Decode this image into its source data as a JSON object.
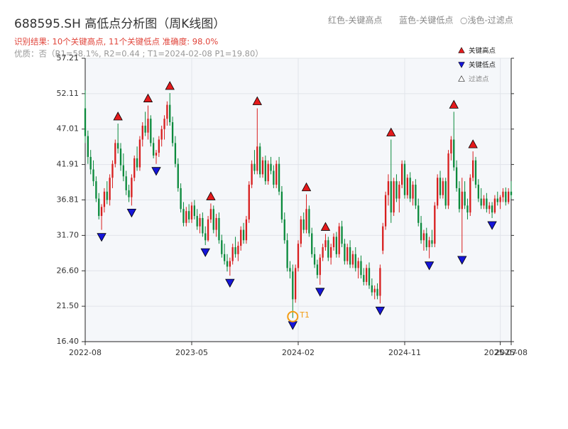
{
  "chart_data": {
    "type": "candlestick",
    "title": "688595.SH 高低点分析图（周K线图）",
    "subtitle": "识别结果: 10个关键高点, 11个关键低点  准确度: 98.0%",
    "note": "优质：否（R1=58.1%, R2=0.44 ; T1=2024-02-08 P1=19.80）",
    "top_legend": [
      "红色-关键高点",
      "蓝色-关键低点",
      "○浅色-过滤点"
    ],
    "up_color": "#d81e1e",
    "down_color": "#0b8a3c",
    "ylim": [
      16.4,
      57.21
    ],
    "yticks": [
      {
        "value": 16.4,
        "label": "16.40"
      },
      {
        "value": 21.5,
        "label": "21.50"
      },
      {
        "value": 26.6,
        "label": "26.60"
      },
      {
        "value": 31.7,
        "label": "31.70"
      },
      36.81,
      41.91,
      47.01,
      52.11,
      57.21
    ],
    "xticks": [
      {
        "value": 0,
        "label": "2022-08"
      },
      {
        "value": 39,
        "label": "2023-05"
      },
      {
        "value": 78,
        "label": "2024-02"
      },
      {
        "value": 117,
        "label": "2024-11"
      },
      {
        "value": 152,
        "label": "2025-07"
      },
      {
        "value": 156,
        "label": "2025-08"
      }
    ],
    "grid": true,
    "candles": [
      [
        50.0,
        52.6,
        45.0,
        46.0
      ],
      [
        46.0,
        46.8,
        42.0,
        43.0
      ],
      [
        43.0,
        44.0,
        40.5,
        41.2
      ],
      [
        41.2,
        42.5,
        38.8,
        39.5
      ],
      [
        39.5,
        40.2,
        36.5,
        37.0
      ],
      [
        37.0,
        37.8,
        34.0,
        34.5
      ],
      [
        34.5,
        36.2,
        32.5,
        35.8
      ],
      [
        35.8,
        38.5,
        35.0,
        38.0
      ],
      [
        38.0,
        39.5,
        36.2,
        36.8
      ],
      [
        36.8,
        40.5,
        36.0,
        40.0
      ],
      [
        40.0,
        42.5,
        38.5,
        42.0
      ],
      [
        42.0,
        45.5,
        41.5,
        45.0
      ],
      [
        45.0,
        47.8,
        43.5,
        44.2
      ],
      [
        44.2,
        45.0,
        41.0,
        41.8
      ],
      [
        41.8,
        43.5,
        39.5,
        40.2
      ],
      [
        40.2,
        41.0,
        37.5,
        38.2
      ],
      [
        38.2,
        39.0,
        36.5,
        37.2
      ],
      [
        37.2,
        40.5,
        36.0,
        40.0
      ],
      [
        40.0,
        43.2,
        39.5,
        42.8
      ],
      [
        42.8,
        44.5,
        41.0,
        41.5
      ],
      [
        41.5,
        46.0,
        41.0,
        45.5
      ],
      [
        45.5,
        48.0,
        44.5,
        47.5
      ],
      [
        47.5,
        49.5,
        46.0,
        46.5
      ],
      [
        46.5,
        50.4,
        45.5,
        48.5
      ],
      [
        48.5,
        49.0,
        44.5,
        45.0
      ],
      [
        45.0,
        45.8,
        42.8,
        43.2
      ],
      [
        43.2,
        44.0,
        42.0,
        43.6
      ],
      [
        43.6,
        46.0,
        43.0,
        45.5
      ],
      [
        45.5,
        47.5,
        44.5,
        47.0
      ],
      [
        47.0,
        49.0,
        45.5,
        48.5
      ],
      [
        48.5,
        51.0,
        47.5,
        50.5
      ],
      [
        50.5,
        52.2,
        47.5,
        48.0
      ],
      [
        48.0,
        48.8,
        44.5,
        45.0
      ],
      [
        45.0,
        46.0,
        41.5,
        42.0
      ],
      [
        42.0,
        42.8,
        38.0,
        38.5
      ],
      [
        38.5,
        39.2,
        35.0,
        35.5
      ],
      [
        35.5,
        36.5,
        33.0,
        33.5
      ],
      [
        33.5,
        35.8,
        33.0,
        35.2
      ],
      [
        35.2,
        36.2,
        33.5,
        34.0
      ],
      [
        34.0,
        36.5,
        33.5,
        36.0
      ],
      [
        36.0,
        36.8,
        34.0,
        34.5
      ],
      [
        34.5,
        35.5,
        32.5,
        33.0
      ],
      [
        33.0,
        34.8,
        32.0,
        34.2
      ],
      [
        34.2,
        35.0,
        31.5,
        32.0
      ],
      [
        32.0,
        33.0,
        30.3,
        31.0
      ],
      [
        31.0,
        34.5,
        30.8,
        34.0
      ],
      [
        34.0,
        36.3,
        33.5,
        35.5
      ],
      [
        35.5,
        36.0,
        32.0,
        32.5
      ],
      [
        32.5,
        34.8,
        31.5,
        34.2
      ],
      [
        34.2,
        35.0,
        30.5,
        31.0
      ],
      [
        31.0,
        31.8,
        28.5,
        29.0
      ],
      [
        29.0,
        30.5,
        27.5,
        28.0
      ],
      [
        28.0,
        29.0,
        26.5,
        27.2
      ],
      [
        27.2,
        28.5,
        25.9,
        28.0
      ],
      [
        28.0,
        30.5,
        27.5,
        30.0
      ],
      [
        30.0,
        31.5,
        28.5,
        29.0
      ],
      [
        29.0,
        30.8,
        28.0,
        30.2
      ],
      [
        30.2,
        33.0,
        29.5,
        32.5
      ],
      [
        32.5,
        33.5,
        30.5,
        31.0
      ],
      [
        31.0,
        34.5,
        30.5,
        34.0
      ],
      [
        34.0,
        39.5,
        33.5,
        39.0
      ],
      [
        39.0,
        42.5,
        38.5,
        42.0
      ],
      [
        42.0,
        44.0,
        40.5,
        41.0
      ],
      [
        41.0,
        50.0,
        40.5,
        44.5
      ],
      [
        44.5,
        45.0,
        40.0,
        40.5
      ],
      [
        40.5,
        43.0,
        40.0,
        42.5
      ],
      [
        42.5,
        43.2,
        39.0,
        39.5
      ],
      [
        39.5,
        42.5,
        39.0,
        42.0
      ],
      [
        42.0,
        43.0,
        40.5,
        41.0
      ],
      [
        41.0,
        41.8,
        38.5,
        39.0
      ],
      [
        39.0,
        42.5,
        38.5,
        42.0
      ],
      [
        42.0,
        43.0,
        37.5,
        38.0
      ],
      [
        38.0,
        38.8,
        33.5,
        34.0
      ],
      [
        34.0,
        35.0,
        30.5,
        31.0
      ],
      [
        31.0,
        32.0,
        26.5,
        27.0
      ],
      [
        27.0,
        28.0,
        25.5,
        26.5
      ],
      [
        26.5,
        27.5,
        19.8,
        22.5
      ],
      [
        22.5,
        27.5,
        22.0,
        27.0
      ],
      [
        27.0,
        31.0,
        26.5,
        30.5
      ],
      [
        30.5,
        34.5,
        30.0,
        34.0
      ],
      [
        34.0,
        35.0,
        32.0,
        32.5
      ],
      [
        32.5,
        37.6,
        32.0,
        35.5
      ],
      [
        35.5,
        36.0,
        31.5,
        32.0
      ],
      [
        32.0,
        32.8,
        28.5,
        29.0
      ],
      [
        29.0,
        30.0,
        27.0,
        27.5
      ],
      [
        27.5,
        28.2,
        25.5,
        26.0
      ],
      [
        26.0,
        29.0,
        24.6,
        28.5
      ],
      [
        28.5,
        30.5,
        28.0,
        30.0
      ],
      [
        30.0,
        31.9,
        29.5,
        31.0
      ],
      [
        31.0,
        31.5,
        28.0,
        28.5
      ],
      [
        28.5,
        30.5,
        27.5,
        30.0
      ],
      [
        30.0,
        32.0,
        29.5,
        31.5
      ],
      [
        31.5,
        32.2,
        28.5,
        29.0
      ],
      [
        29.0,
        33.5,
        28.5,
        33.0
      ],
      [
        33.0,
        33.8,
        30.0,
        30.5
      ],
      [
        30.5,
        31.2,
        27.5,
        28.0
      ],
      [
        28.0,
        30.5,
        27.5,
        30.0
      ],
      [
        30.0,
        31.0,
        27.0,
        27.5
      ],
      [
        27.5,
        29.5,
        27.0,
        29.0
      ],
      [
        29.0,
        30.0,
        26.5,
        27.0
      ],
      [
        27.0,
        28.5,
        25.5,
        28.0
      ],
      [
        28.0,
        28.8,
        25.5,
        26.0
      ],
      [
        26.0,
        27.0,
        24.5,
        25.0
      ],
      [
        25.0,
        27.5,
        24.5,
        27.0
      ],
      [
        27.0,
        27.8,
        24.0,
        24.5
      ],
      [
        24.5,
        25.5,
        23.0,
        23.5
      ],
      [
        23.5,
        24.5,
        22.5,
        24.0
      ],
      [
        24.0,
        24.8,
        22.5,
        23.0
      ],
      [
        23.0,
        27.5,
        21.9,
        27.0
      ],
      [
        29.5,
        33.5,
        29.0,
        33.0
      ],
      [
        33.0,
        38.0,
        32.5,
        37.5
      ],
      [
        37.5,
        40.5,
        36.0,
        39.5
      ],
      [
        39.5,
        45.5,
        33.5,
        35.0
      ],
      [
        35.0,
        40.0,
        34.5,
        39.5
      ],
      [
        39.5,
        40.5,
        36.5,
        37.0
      ],
      [
        37.0,
        39.5,
        35.0,
        39.0
      ],
      [
        39.0,
        42.5,
        38.5,
        42.0
      ],
      [
        42.0,
        42.5,
        37.0,
        37.5
      ],
      [
        37.5,
        40.5,
        37.0,
        40.0
      ],
      [
        40.0,
        40.8,
        36.5,
        37.0
      ],
      [
        37.0,
        39.5,
        36.0,
        39.0
      ],
      [
        39.0,
        39.8,
        35.5,
        36.0
      ],
      [
        36.0,
        37.0,
        33.0,
        33.5
      ],
      [
        33.5,
        34.5,
        30.5,
        31.0
      ],
      [
        31.0,
        32.5,
        29.5,
        32.0
      ],
      [
        32.0,
        32.8,
        29.5,
        30.0
      ],
      [
        30.0,
        31.5,
        28.4,
        31.0
      ],
      [
        31.0,
        32.5,
        30.0,
        30.5
      ],
      [
        30.5,
        36.5,
        30.0,
        36.0
      ],
      [
        36.0,
        40.5,
        35.5,
        40.0
      ],
      [
        40.0,
        41.0,
        37.0,
        37.5
      ],
      [
        37.5,
        40.0,
        37.0,
        39.5
      ],
      [
        39.5,
        40.0,
        35.5,
        36.0
      ],
      [
        36.0,
        44.0,
        35.5,
        43.5
      ],
      [
        43.5,
        46.0,
        42.5,
        45.5
      ],
      [
        45.5,
        49.5,
        41.0,
        41.5
      ],
      [
        41.5,
        42.5,
        38.0,
        38.5
      ],
      [
        38.5,
        39.5,
        35.0,
        35.5
      ],
      [
        35.5,
        40.0,
        29.2,
        38.0
      ],
      [
        38.0,
        39.5,
        35.5,
        36.0
      ],
      [
        36.0,
        37.0,
        34.0,
        35.0
      ],
      [
        35.0,
        40.5,
        34.5,
        40.0
      ],
      [
        40.0,
        43.8,
        39.5,
        42.5
      ],
      [
        42.5,
        43.0,
        38.5,
        39.0
      ],
      [
        39.0,
        39.8,
        36.5,
        37.0
      ],
      [
        37.0,
        38.5,
        35.5,
        36.0
      ],
      [
        36.0,
        37.5,
        35.5,
        37.0
      ],
      [
        37.0,
        37.8,
        35.0,
        35.5
      ],
      [
        35.5,
        36.5,
        34.8,
        36.0
      ],
      [
        36.0,
        36.5,
        34.2,
        35.0
      ],
      [
        35.0,
        37.5,
        34.8,
        37.0
      ],
      [
        37.0,
        38.0,
        36.0,
        36.5
      ],
      [
        36.5,
        37.5,
        35.5,
        37.2
      ],
      [
        37.2,
        38.5,
        36.5,
        38.0
      ],
      [
        38.0,
        38.6,
        36.0,
        36.5
      ],
      [
        36.5,
        38.5,
        36.2,
        38.0
      ],
      [
        38.0,
        39.5,
        37.0,
        37.5
      ]
    ],
    "markers": [
      {
        "name": "关键高点",
        "color": "#e41a1c",
        "shape": "up",
        "points": [
          {
            "index": 12,
            "value": 47.8
          },
          {
            "index": 23,
            "value": 50.4
          },
          {
            "index": 31,
            "value": 52.2
          },
          {
            "index": 46,
            "value": 36.3
          },
          {
            "index": 63,
            "value": 50.0
          },
          {
            "index": 81,
            "value": 37.6
          },
          {
            "index": 88,
            "value": 31.9
          },
          {
            "index": 112,
            "value": 45.5
          },
          {
            "index": 135,
            "value": 49.5
          },
          {
            "index": 142,
            "value": 43.8
          }
        ]
      },
      {
        "name": "关键低点",
        "color": "#1515d8",
        "shape": "down",
        "points": [
          {
            "index": 6,
            "value": 32.5
          },
          {
            "index": 17,
            "value": 36.0
          },
          {
            "index": 26,
            "value": 42.0
          },
          {
            "index": 44,
            "value": 30.3
          },
          {
            "index": 53,
            "value": 25.9
          },
          {
            "index": 76,
            "value": 19.8
          },
          {
            "index": 86,
            "value": 24.6
          },
          {
            "index": 108,
            "value": 21.9
          },
          {
            "index": 126,
            "value": 28.4
          },
          {
            "index": 138,
            "value": 29.2
          },
          {
            "index": 149,
            "value": 34.2
          }
        ]
      },
      {
        "name": "过滤点",
        "color": "#ffffff",
        "shape": "up",
        "points": []
      }
    ],
    "t1": {
      "label": "T1",
      "index": 76,
      "value": 19.8,
      "color": "#f39c12"
    }
  }
}
